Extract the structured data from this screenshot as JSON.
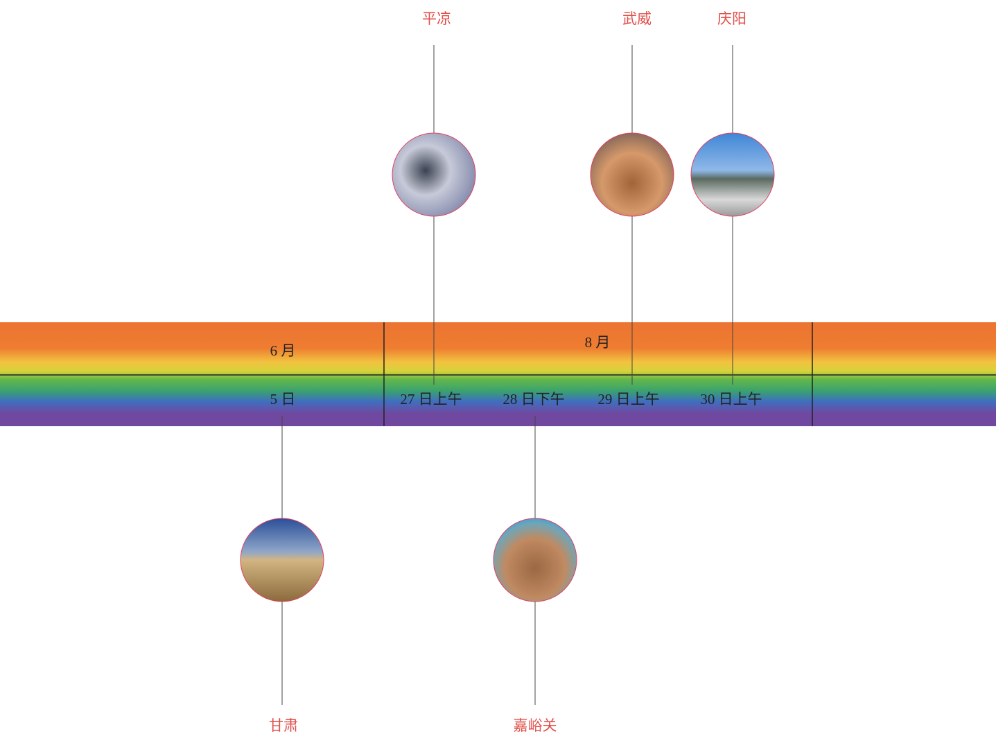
{
  "months": [
    "6 月",
    "8 月"
  ],
  "days": [
    "5 日",
    "27 日上午",
    "28 日下午",
    "29 日上午",
    "30 日上午"
  ],
  "places": [
    {
      "label": "平凉"
    },
    {
      "label": "武威"
    },
    {
      "label": "庆阳"
    },
    {
      "label": "甘肃"
    },
    {
      "label": "嘉峪关"
    }
  ]
}
